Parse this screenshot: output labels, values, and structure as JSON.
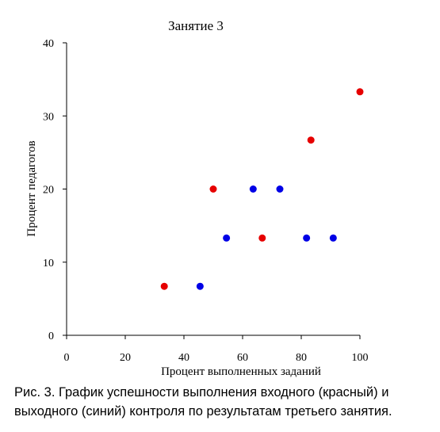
{
  "chart_data": {
    "type": "scatter",
    "title": "Занятие 3",
    "x_label": "Процент выполненных заданий",
    "y_label": "Процент педагогов",
    "xlim": [
      0,
      100
    ],
    "xticks": [
      0,
      20,
      40,
      60,
      80,
      100
    ],
    "ylim": [
      0,
      40
    ],
    "yticks": [
      0,
      10,
      20,
      30,
      40
    ],
    "series": [
      {
        "color": "#e60000",
        "x": [
          33.3,
          50,
          66.7,
          83.3,
          100
        ],
        "values": [
          6.7,
          20,
          13.3,
          26.7,
          33.3
        ]
      },
      {
        "color": "#0000e6",
        "x": [
          45.5,
          54.5,
          63.6,
          72.7,
          81.8,
          90.9
        ],
        "values": [
          6.7,
          13.3,
          20,
          20,
          13.3,
          13.3
        ]
      }
    ]
  },
  "caption": "Рис. 3. График успешности выполнения входного (красный) и выходного (синий) контроля по результатам третьего занятия."
}
